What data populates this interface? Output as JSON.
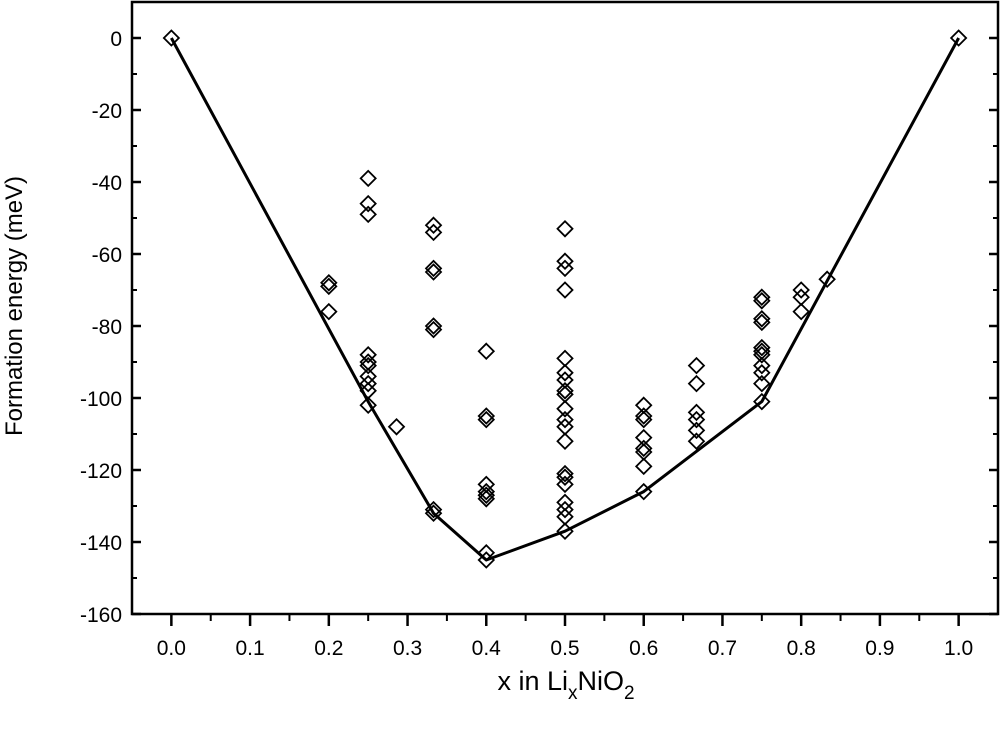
{
  "chart_data": {
    "type": "scatter",
    "title": "",
    "xlabel": {
      "prefix": "x in Li",
      "sub1": "x",
      "mid": "NiO",
      "sub2": "2"
    },
    "ylabel": "Formation energy (meV)",
    "xlim": [
      -0.05,
      1.05
    ],
    "ylim": [
      -160,
      10
    ],
    "x_ticks": [
      0.0,
      0.1,
      0.2,
      0.3,
      0.4,
      0.5,
      0.6,
      0.7,
      0.8,
      0.9,
      1.0
    ],
    "x_tick_labels": [
      "0.0",
      "0.1",
      "0.2",
      "0.3",
      "0.4",
      "0.5",
      "0.6",
      "0.7",
      "0.8",
      "0.9",
      "1.0"
    ],
    "y_ticks": [
      0,
      -20,
      -40,
      -60,
      -80,
      -100,
      -120,
      -140,
      -160
    ],
    "y_tick_labels": [
      "0",
      "-20",
      "-40",
      "-60",
      "-80",
      "-100",
      "-120",
      "-140",
      "-160"
    ],
    "grid": false,
    "marker": "open-diamond",
    "series": [
      {
        "points": [
          [
            0.0,
            0
          ],
          [
            0.2,
            -68
          ],
          [
            0.2,
            -69
          ],
          [
            0.2,
            -76
          ],
          [
            0.25,
            -39
          ],
          [
            0.25,
            -46
          ],
          [
            0.25,
            -49
          ],
          [
            0.25,
            -88
          ],
          [
            0.25,
            -90
          ],
          [
            0.25,
            -91
          ],
          [
            0.25,
            -94
          ],
          [
            0.25,
            -96
          ],
          [
            0.25,
            -98
          ],
          [
            0.25,
            -102
          ],
          [
            0.286,
            -108
          ],
          [
            0.333,
            -52
          ],
          [
            0.333,
            -54
          ],
          [
            0.333,
            -64
          ],
          [
            0.333,
            -65
          ],
          [
            0.333,
            -80
          ],
          [
            0.333,
            -81
          ],
          [
            0.333,
            -131
          ],
          [
            0.333,
            -132
          ],
          [
            0.4,
            -87
          ],
          [
            0.4,
            -105
          ],
          [
            0.4,
            -106
          ],
          [
            0.4,
            -124
          ],
          [
            0.4,
            -126
          ],
          [
            0.4,
            -127
          ],
          [
            0.4,
            -128
          ],
          [
            0.4,
            -143
          ],
          [
            0.4,
            -145
          ],
          [
            0.5,
            -53
          ],
          [
            0.5,
            -62
          ],
          [
            0.5,
            -64
          ],
          [
            0.5,
            -70
          ],
          [
            0.5,
            -89
          ],
          [
            0.5,
            -93
          ],
          [
            0.5,
            -95
          ],
          [
            0.5,
            -98
          ],
          [
            0.5,
            -99
          ],
          [
            0.5,
            -103
          ],
          [
            0.5,
            -106
          ],
          [
            0.5,
            -108
          ],
          [
            0.5,
            -112
          ],
          [
            0.5,
            -121
          ],
          [
            0.5,
            -122
          ],
          [
            0.5,
            -124
          ],
          [
            0.5,
            -129
          ],
          [
            0.5,
            -131
          ],
          [
            0.5,
            -133
          ],
          [
            0.5,
            -137
          ],
          [
            0.6,
            -102
          ],
          [
            0.6,
            -105
          ],
          [
            0.6,
            -106
          ],
          [
            0.6,
            -111
          ],
          [
            0.6,
            -114
          ],
          [
            0.6,
            -115
          ],
          [
            0.6,
            -119
          ],
          [
            0.6,
            -126
          ],
          [
            0.667,
            -91
          ],
          [
            0.667,
            -96
          ],
          [
            0.667,
            -104
          ],
          [
            0.667,
            -106
          ],
          [
            0.667,
            -109
          ],
          [
            0.667,
            -112
          ],
          [
            0.75,
            -72
          ],
          [
            0.75,
            -73
          ],
          [
            0.75,
            -78
          ],
          [
            0.75,
            -79
          ],
          [
            0.75,
            -86
          ],
          [
            0.75,
            -87
          ],
          [
            0.75,
            -88
          ],
          [
            0.75,
            -91
          ],
          [
            0.75,
            -93
          ],
          [
            0.75,
            -96
          ],
          [
            0.75,
            -101
          ],
          [
            0.8,
            -70
          ],
          [
            0.8,
            -72
          ],
          [
            0.8,
            -76
          ],
          [
            0.833,
            -67
          ],
          [
            1.0,
            0
          ]
        ]
      },
      {
        "type": "line",
        "points": [
          [
            0.0,
            0
          ],
          [
            0.25,
            -101
          ],
          [
            0.333,
            -132
          ],
          [
            0.4,
            -145
          ],
          [
            0.5,
            -137
          ],
          [
            0.6,
            -126
          ],
          [
            0.75,
            -101
          ],
          [
            1.0,
            0
          ]
        ]
      }
    ]
  }
}
